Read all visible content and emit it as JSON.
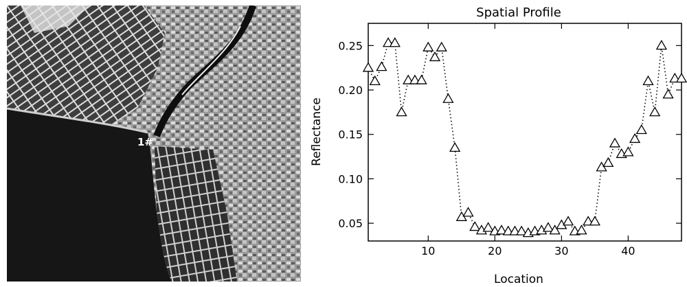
{
  "image_panel": {
    "marker_label": "1#"
  },
  "chart_data": {
    "type": "scatter",
    "title": "Spatial Profile",
    "xlabel": "Location",
    "ylabel": "Reflectance",
    "xlim": [
      1,
      48
    ],
    "ylim": [
      0.03,
      0.275
    ],
    "xticks": [
      10,
      20,
      30,
      40
    ],
    "yticks": [
      0.05,
      0.1,
      0.15,
      0.2,
      0.25
    ],
    "ytick_labels": [
      "0.05",
      "0.10",
      "0.15",
      "0.20",
      "0.25"
    ],
    "marker": "triangle",
    "line_style": "dotted",
    "series": [
      {
        "x": [
          1,
          2,
          3,
          4,
          5,
          6,
          7,
          8,
          9,
          10,
          11,
          12,
          13,
          14,
          15,
          16,
          17,
          18,
          19,
          20,
          21,
          22,
          23,
          24,
          25,
          26,
          27,
          28,
          29,
          30,
          31,
          32,
          33,
          34,
          35,
          36,
          37,
          38,
          39,
          40,
          41,
          42,
          43,
          44,
          45,
          46,
          47,
          48
        ],
        "y": [
          0.225,
          0.21,
          0.226,
          0.253,
          0.253,
          0.175,
          0.211,
          0.211,
          0.211,
          0.248,
          0.237,
          0.248,
          0.19,
          0.135,
          0.057,
          0.062,
          0.046,
          0.042,
          0.045,
          0.041,
          0.042,
          0.041,
          0.041,
          0.041,
          0.039,
          0.041,
          0.042,
          0.045,
          0.042,
          0.048,
          0.052,
          0.041,
          0.042,
          0.052,
          0.052,
          0.113,
          0.118,
          0.14,
          0.128,
          0.13,
          0.145,
          0.155,
          0.21,
          0.175,
          0.25,
          0.195,
          0.213,
          0.213
        ]
      }
    ]
  }
}
